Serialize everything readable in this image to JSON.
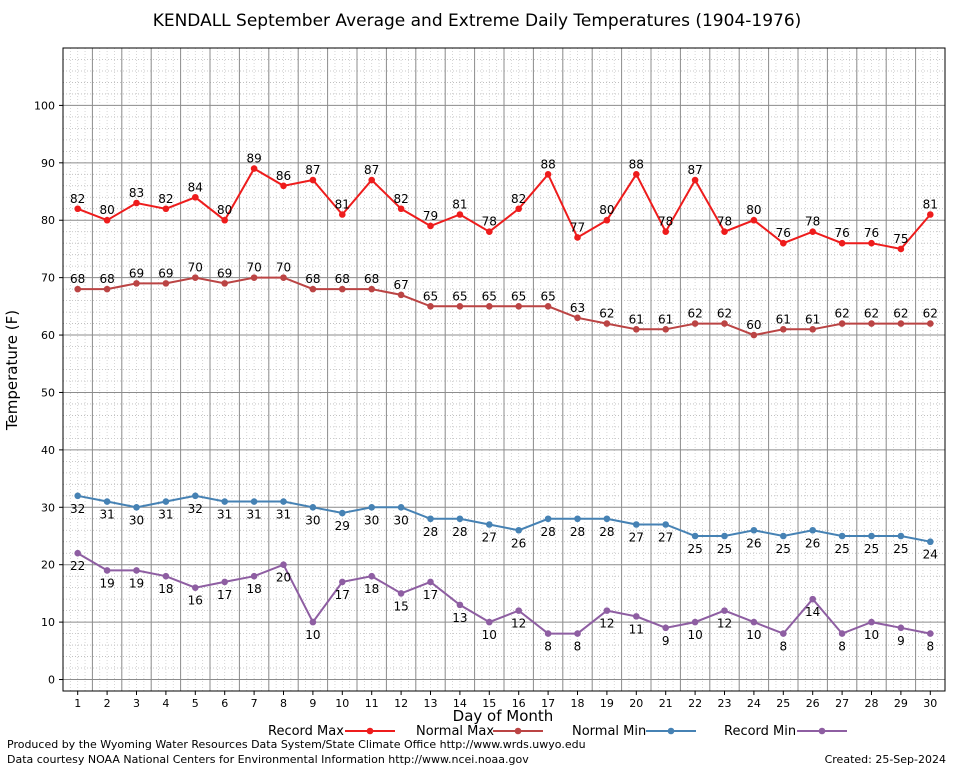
{
  "chart_data": {
    "type": "line",
    "title": "KENDALL September Average and Extreme Daily Temperatures (1904-1976)",
    "xlabel": "Day of Month",
    "ylabel": "Temperature (F)",
    "xlim": [
      0.5,
      30.5
    ],
    "ylim": [
      -2,
      110
    ],
    "y_ticks": [
      0,
      10,
      20,
      30,
      40,
      50,
      60,
      70,
      80,
      90,
      100
    ],
    "grid": true,
    "legend_position": "bottom",
    "x": [
      1,
      2,
      3,
      4,
      5,
      6,
      7,
      8,
      9,
      10,
      11,
      12,
      13,
      14,
      15,
      16,
      17,
      18,
      19,
      20,
      21,
      22,
      23,
      24,
      25,
      26,
      27,
      28,
      29,
      30
    ],
    "series": [
      {
        "name": "Record Max",
        "color": "#ee1c1c",
        "label_pos": "above",
        "values": [
          82,
          80,
          83,
          82,
          84,
          80,
          89,
          86,
          87,
          81,
          87,
          82,
          79,
          81,
          78,
          82,
          88,
          77,
          80,
          88,
          78,
          87,
          78,
          80,
          76,
          78,
          76,
          76,
          75,
          81
        ]
      },
      {
        "name": "Normal Max",
        "color": "#bb4444",
        "label_pos": "above",
        "values": [
          68,
          68,
          69,
          69,
          70,
          69,
          70,
          70,
          68,
          68,
          68,
          67,
          65,
          65,
          65,
          65,
          65,
          63,
          62,
          61,
          61,
          62,
          62,
          60,
          61,
          61,
          62,
          62,
          62,
          62
        ]
      },
      {
        "name": "Normal Min",
        "color": "#4682b4",
        "label_pos": "below",
        "values": [
          32,
          31,
          30,
          31,
          32,
          31,
          31,
          31,
          30,
          29,
          30,
          30,
          28,
          28,
          27,
          26,
          28,
          28,
          28,
          27,
          27,
          25,
          25,
          26,
          25,
          26,
          25,
          25,
          25,
          24
        ]
      },
      {
        "name": "Record Min",
        "color": "#8e5ea2",
        "label_pos": "below",
        "values": [
          22,
          19,
          19,
          18,
          16,
          17,
          18,
          20,
          10,
          17,
          18,
          15,
          17,
          13,
          10,
          12,
          8,
          8,
          12,
          11,
          9,
          10,
          12,
          10,
          8,
          14,
          8,
          10,
          9,
          8
        ]
      }
    ]
  },
  "footer": {
    "produced_by": "Produced by the Wyoming Water Resources Data System/State Climate Office http://www.wrds.uwyo.edu",
    "data_courtesy": "Data courtesy NOAA National Centers for Environmental Information http://www.ncei.noaa.gov",
    "created": "Created:  25-Sep-2024"
  }
}
